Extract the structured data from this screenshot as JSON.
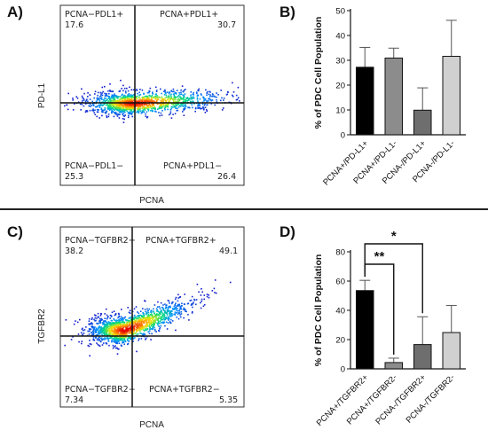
{
  "panels": {
    "a_label": "A)",
    "b_label": "B)",
    "c_label": "C)",
    "d_label": "D)"
  },
  "flowA": {
    "ylabel": "PD-L1",
    "xlabel": "PCNA",
    "q_tl_name": "PCNA−PDL1+",
    "q_tl_val": "17.6",
    "q_tr_name": "PCNA+PDL1+",
    "q_tr_val": "30.7",
    "q_bl_name": "PCNA−PDL1−",
    "q_bl_val": "25.3",
    "q_br_name": "PCNA+PDL1−",
    "q_br_val": "26.4"
  },
  "flowC": {
    "ylabel": "TGFBR2",
    "xlabel": "PCNA",
    "q_tl_name": "PCNA−TGFBR2+",
    "q_tl_val": "38.2",
    "q_tr_name": "PCNA+TGFBR2+",
    "q_tr_val": "49.1",
    "q_bl_name": "PCNA−TGFBR2−",
    "q_bl_val": "7.34",
    "q_br_name": "PCNA+TGFBR2−",
    "q_br_val": "5.35"
  },
  "chart_data": [
    {
      "type": "bar",
      "ylabel": "% of PDC Cell Population",
      "ylim": [
        0,
        50
      ],
      "yticks": [
        0,
        10,
        20,
        30,
        40,
        50
      ],
      "categories": [
        "PCNA+/PD-L1+",
        "PCNA+/PD-L1-",
        "PCNA-/PD-L1+",
        "PCNA-/PD-L1-"
      ],
      "values": [
        27.2,
        30.9,
        9.9,
        31.6
      ],
      "error": [
        8.0,
        4.0,
        9.0,
        14.5
      ],
      "colors": [
        "#000000",
        "#8c8c8c",
        "#6e6e6e",
        "#d0d0d0"
      ],
      "grid": false
    },
    {
      "type": "bar",
      "ylabel": "% of PDC Cell Population",
      "ylim": [
        0,
        80
      ],
      "yticks": [
        0,
        20,
        40,
        60,
        80
      ],
      "categories": [
        "PCNA+/TGFBR2+",
        "PCNA+/TGFBR2-",
        "PCNA-/TGFBR2+",
        "PCNA-/TGFBR2-"
      ],
      "values": [
        53.5,
        4.3,
        16.6,
        24.8
      ],
      "error": [
        7.0,
        3.0,
        19.0,
        18.5
      ],
      "colors": [
        "#000000",
        "#8c8c8c",
        "#6e6e6e",
        "#d0d0d0"
      ],
      "significance": [
        {
          "from": 0,
          "to": 1,
          "label": "**"
        },
        {
          "from": 0,
          "to": 2,
          "label": "*"
        }
      ],
      "grid": false
    }
  ]
}
